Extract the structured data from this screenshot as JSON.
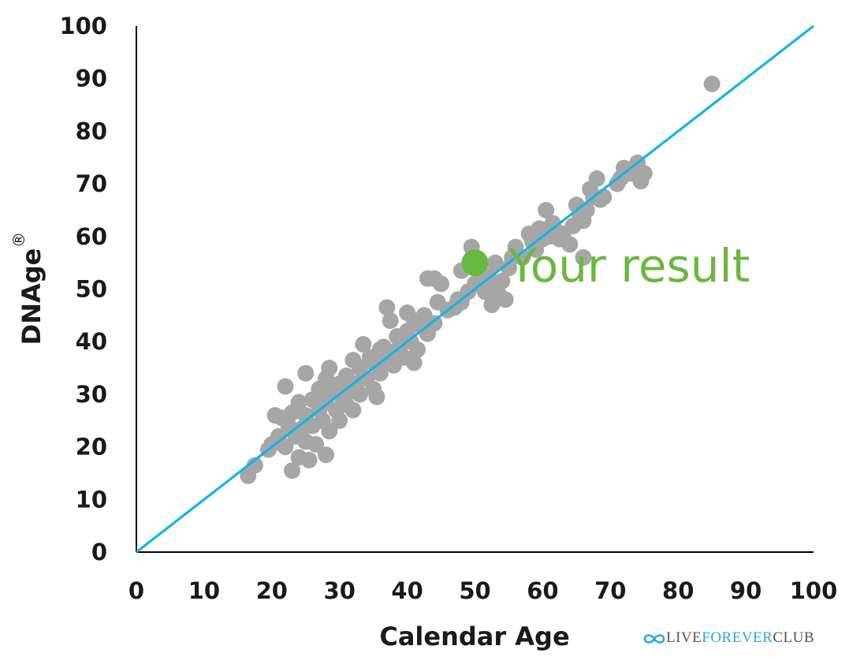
{
  "chart_data": {
    "type": "scatter",
    "xlabel": "Calendar Age",
    "ylabel": "DNAge",
    "ylabel_mark": "®",
    "xlim": [
      0,
      100
    ],
    "ylim": [
      0,
      100
    ],
    "x_ticks": [
      "0",
      "10",
      "20",
      "30",
      "40",
      "50",
      "60",
      "70",
      "80",
      "90",
      "100"
    ],
    "y_ticks": [
      "0",
      "10",
      "20",
      "30",
      "40",
      "50",
      "60",
      "70",
      "80",
      "90",
      "100"
    ],
    "grid": false,
    "series": [
      {
        "color": "#a6a6a6",
        "points": [
          [
            16.5,
            14.5
          ],
          [
            17.5,
            16.5
          ],
          [
            19.5,
            19.5
          ],
          [
            20,
            20.5
          ],
          [
            20.5,
            26
          ],
          [
            21,
            22
          ],
          [
            21.5,
            25.5
          ],
          [
            22,
            31.5
          ],
          [
            22,
            20
          ],
          [
            22.5,
            24
          ],
          [
            23,
            26.5
          ],
          [
            23,
            15.5
          ],
          [
            23.5,
            22
          ],
          [
            24,
            28.5
          ],
          [
            24,
            18
          ],
          [
            24.5,
            23.5
          ],
          [
            25,
            34
          ],
          [
            25,
            26
          ],
          [
            25,
            21
          ],
          [
            25.5,
            17.5
          ],
          [
            26,
            29
          ],
          [
            26,
            24
          ],
          [
            26.5,
            20.5
          ],
          [
            27,
            31
          ],
          [
            27,
            27
          ],
          [
            27.5,
            25
          ],
          [
            28,
            33
          ],
          [
            28,
            28.5
          ],
          [
            28,
            18.5
          ],
          [
            28.5,
            35
          ],
          [
            28.5,
            23
          ],
          [
            29,
            30.5
          ],
          [
            29.5,
            27
          ],
          [
            30,
            32
          ],
          [
            30,
            25
          ],
          [
            30.5,
            29
          ],
          [
            31,
            33.5
          ],
          [
            31,
            28
          ],
          [
            31.5,
            30.5
          ],
          [
            32,
            36.5
          ],
          [
            32,
            27
          ],
          [
            32.5,
            32
          ],
          [
            33,
            35
          ],
          [
            33,
            30
          ],
          [
            33.5,
            39.5
          ],
          [
            34,
            33
          ],
          [
            34.5,
            37
          ],
          [
            35,
            36
          ],
          [
            35,
            31
          ],
          [
            35.5,
            29.5
          ],
          [
            36,
            38.5
          ],
          [
            36,
            34
          ],
          [
            36.5,
            39
          ],
          [
            37,
            46.5
          ],
          [
            37,
            36.5
          ],
          [
            37.5,
            44
          ],
          [
            38,
            38
          ],
          [
            38,
            35.5
          ],
          [
            38.5,
            41
          ],
          [
            39,
            39.5
          ],
          [
            39.5,
            37
          ],
          [
            40,
            45.5
          ],
          [
            40,
            42
          ],
          [
            40.5,
            40
          ],
          [
            41,
            36
          ],
          [
            41,
            44
          ],
          [
            41.5,
            38.5
          ],
          [
            42,
            43
          ],
          [
            42.5,
            45
          ],
          [
            43,
            52
          ],
          [
            43,
            41.5
          ],
          [
            44,
            43.5
          ],
          [
            44,
            52
          ],
          [
            44.5,
            47.5
          ],
          [
            45,
            51
          ],
          [
            46,
            46
          ],
          [
            47,
            46.5
          ],
          [
            47.5,
            48
          ],
          [
            48,
            53.5
          ],
          [
            48,
            47.5
          ],
          [
            49,
            49.5
          ],
          [
            49.5,
            58
          ],
          [
            50,
            51
          ],
          [
            51,
            53
          ],
          [
            51.5,
            49.5
          ],
          [
            52,
            52.5
          ],
          [
            52.5,
            47
          ],
          [
            53,
            55
          ],
          [
            53,
            50.5
          ],
          [
            53.5,
            49
          ],
          [
            54,
            51.5
          ],
          [
            54.5,
            48
          ],
          [
            55,
            54
          ],
          [
            55.5,
            56
          ],
          [
            56,
            58
          ],
          [
            57,
            56
          ],
          [
            58,
            60.5
          ],
          [
            58.5,
            59
          ],
          [
            59,
            57.5
          ],
          [
            59.5,
            61.5
          ],
          [
            60,
            59.5
          ],
          [
            60.5,
            65
          ],
          [
            61,
            60
          ],
          [
            61.5,
            62.5
          ],
          [
            62,
            61
          ],
          [
            62.5,
            59.5
          ],
          [
            63,
            60.5
          ],
          [
            64,
            58.5
          ],
          [
            64.5,
            62
          ],
          [
            65,
            66
          ],
          [
            65.5,
            64
          ],
          [
            66,
            63
          ],
          [
            66,
            56
          ],
          [
            66.5,
            65
          ],
          [
            67,
            69
          ],
          [
            67.5,
            67.5
          ],
          [
            68,
            71
          ],
          [
            68.5,
            67
          ],
          [
            69,
            67.5
          ],
          [
            71,
            70
          ],
          [
            71.5,
            71
          ],
          [
            72,
            73
          ],
          [
            73,
            72
          ],
          [
            74,
            74
          ],
          [
            74.5,
            70.5
          ],
          [
            75,
            72
          ],
          [
            85,
            89
          ]
        ]
      }
    ],
    "reference_line": {
      "x": [
        0,
        100
      ],
      "y": [
        0,
        100
      ],
      "color": "#14b3e8"
    },
    "highlight": {
      "x": 50,
      "y": 55,
      "color": "#6ab83f",
      "label": "Your result"
    }
  },
  "brand": {
    "left": "LIVE",
    "middle": "FOREVER",
    "right": "CLUB"
  }
}
